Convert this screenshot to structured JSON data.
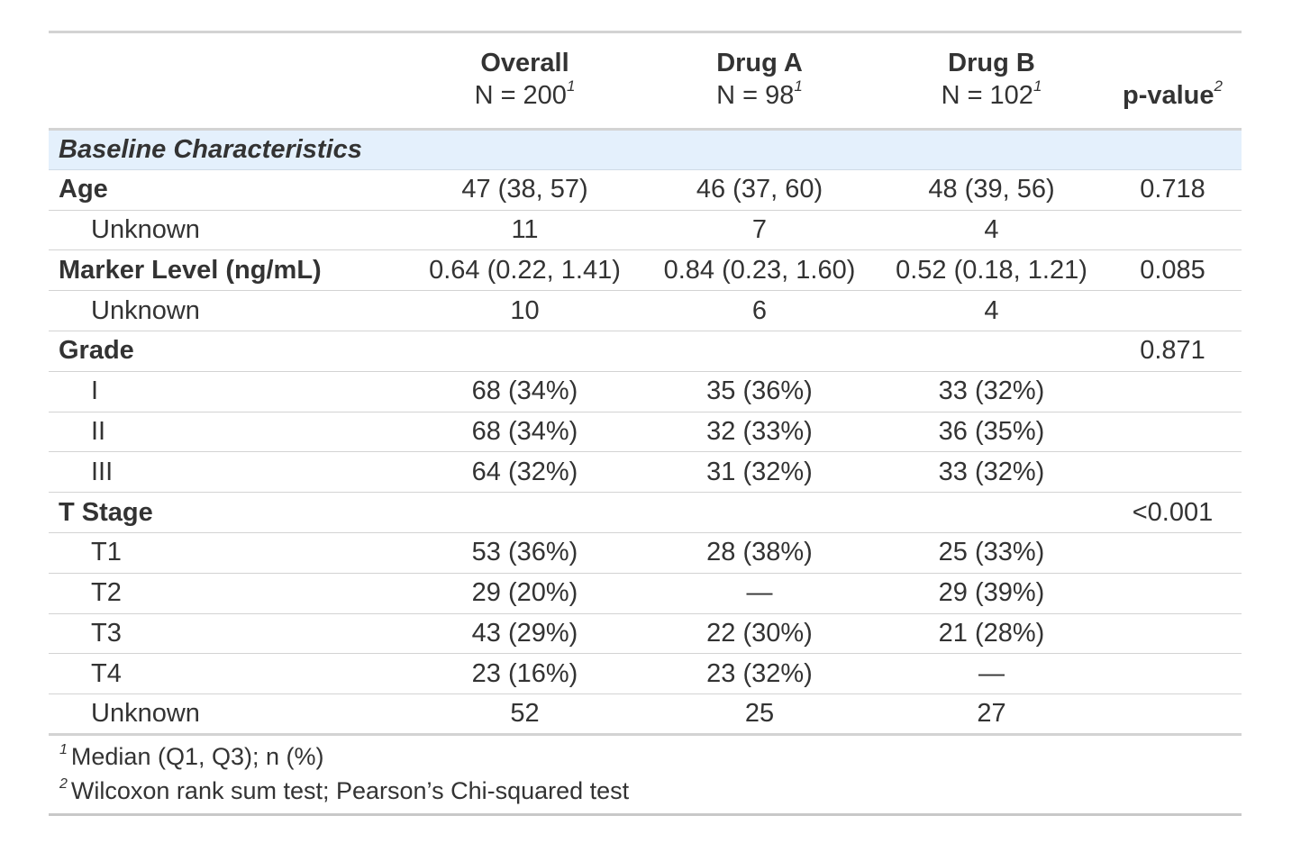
{
  "header": {
    "columns": [
      {
        "label": "Overall",
        "n": "N = 200",
        "note": "1"
      },
      {
        "label": "Drug A",
        "n": "N = 98",
        "note": "1"
      },
      {
        "label": "Drug B",
        "n": "N = 102",
        "note": "1"
      }
    ],
    "p_value": {
      "label": "p-value",
      "note": "2"
    }
  },
  "section": "Baseline Characteristics",
  "variables": [
    {
      "label": "Age",
      "cells": [
        "47 (38, 57)",
        "46 (37, 60)",
        "48 (39, 56)"
      ],
      "p": "0.718",
      "levels": [
        {
          "label": "Unknown",
          "cells": [
            "11",
            "7",
            "4"
          ]
        }
      ]
    },
    {
      "label": "Marker Level (ng/mL)",
      "cells": [
        "0.64 (0.22, 1.41)",
        "0.84 (0.23, 1.60)",
        "0.52 (0.18, 1.21)"
      ],
      "p": "0.085",
      "levels": [
        {
          "label": "Unknown",
          "cells": [
            "10",
            "6",
            "4"
          ]
        }
      ]
    },
    {
      "label": "Grade",
      "p": "0.871",
      "levels": [
        {
          "label": "I",
          "cells": [
            "68 (34%)",
            "35 (36%)",
            "33 (32%)"
          ]
        },
        {
          "label": "II",
          "cells": [
            "68 (34%)",
            "32 (33%)",
            "36 (35%)"
          ]
        },
        {
          "label": "III",
          "cells": [
            "64 (32%)",
            "31 (32%)",
            "33 (32%)"
          ]
        }
      ]
    },
    {
      "label": "T Stage",
      "p": "<0.001",
      "levels": [
        {
          "label": "T1",
          "cells": [
            "53 (36%)",
            "28 (38%)",
            "25 (33%)"
          ]
        },
        {
          "label": "T2",
          "cells": [
            "29 (20%)",
            "—",
            "29 (39%)"
          ]
        },
        {
          "label": "T3",
          "cells": [
            "43 (29%)",
            "22 (30%)",
            "21 (28%)"
          ]
        },
        {
          "label": "T4",
          "cells": [
            "23 (16%)",
            "23 (32%)",
            "—"
          ]
        },
        {
          "label": "Unknown",
          "cells": [
            "52",
            "25",
            "27"
          ]
        }
      ]
    }
  ],
  "footnotes": [
    {
      "mark": "1",
      "text": "Median (Q1, Q3); n (%)"
    },
    {
      "mark": "2",
      "text": "Wilcoxon rank sum test; Pearson’s Chi-squared test"
    }
  ]
}
